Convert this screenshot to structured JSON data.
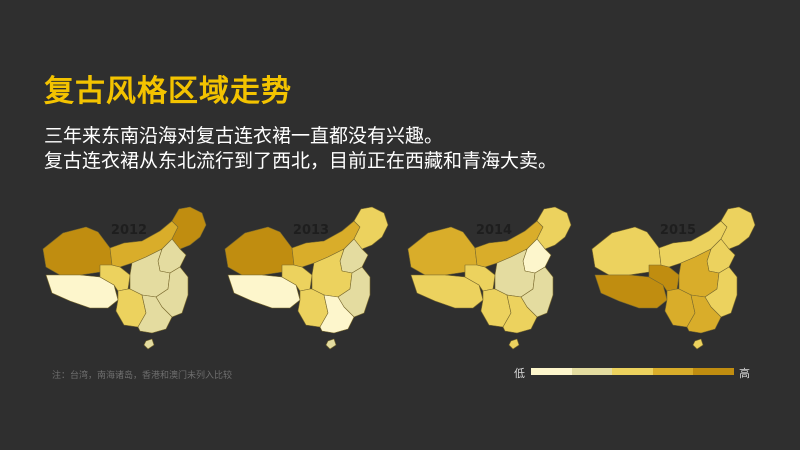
{
  "page": {
    "title": "复古风格区域走势",
    "subtitle_lines": [
      "三年来东南沿海对复古连衣裙一直都没有兴趣。",
      "复古连衣裙从东北流行到了西北，目前正在西藏和青海大卖。"
    ],
    "note": "注：台湾，南海诸岛，香港和澳门未列入比较"
  },
  "legend": {
    "low_label": "低",
    "high_label": "高",
    "colors": [
      "#fdf6cc",
      "#e4dca0",
      "#ecd25e",
      "#d9ad2a",
      "#c08d10"
    ]
  },
  "maps": [
    {
      "year": "2012",
      "levels": {
        "xinjiang": 4,
        "tibet": 0,
        "qinghai": 2,
        "inner_mongolia": 3,
        "northeast": 4,
        "north": 1,
        "central": 1,
        "southwest": 2,
        "east": 1,
        "south": 1,
        "hainan": 1
      }
    },
    {
      "year": "2013",
      "levels": {
        "xinjiang": 4,
        "tibet": 0,
        "qinghai": 2,
        "inner_mongolia": 3,
        "northeast": 2,
        "north": 1,
        "central": 2,
        "southwest": 2,
        "east": 1,
        "south": 0,
        "hainan": 1
      }
    },
    {
      "year": "2014",
      "levels": {
        "xinjiang": 3,
        "tibet": 2,
        "qinghai": 2,
        "inner_mongolia": 3,
        "northeast": 2,
        "north": 0,
        "central": 1,
        "southwest": 2,
        "east": 1,
        "south": 2,
        "hainan": 2
      }
    },
    {
      "year": "2015",
      "levels": {
        "xinjiang": 2,
        "tibet": 4,
        "qinghai": 4,
        "inner_mongolia": 2,
        "northeast": 2,
        "north": 2,
        "central": 3,
        "southwest": 3,
        "east": 2,
        "south": 3,
        "hainan": 2
      }
    }
  ]
}
